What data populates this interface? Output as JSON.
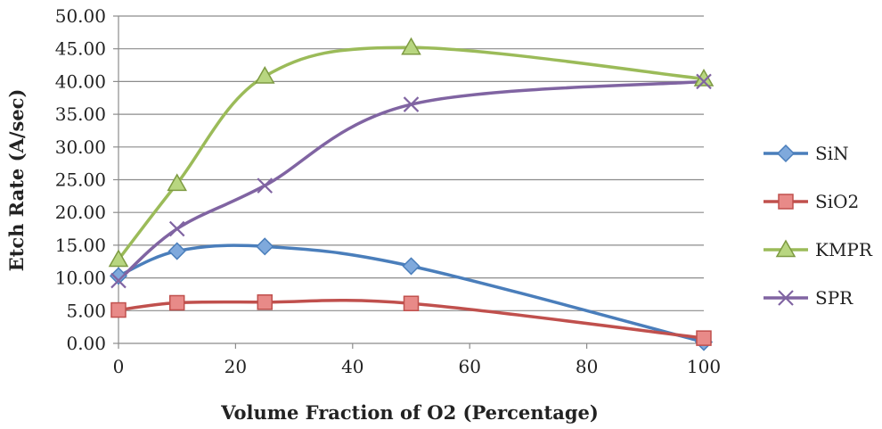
{
  "chart_data": {
    "type": "line",
    "title": "",
    "xlabel": "Volume Fraction of O2 (Percentage)",
    "ylabel": "Etch Rate (A/sec)",
    "xlim": [
      0,
      100
    ],
    "ylim": [
      0,
      50
    ],
    "xticks": [
      "0",
      "20",
      "40",
      "60",
      "80",
      "100"
    ],
    "yticks": [
      "0.00",
      "5.00",
      "10.00",
      "15.00",
      "20.00",
      "25.00",
      "30.00",
      "35.00",
      "40.00",
      "45.00",
      "50.00"
    ],
    "grid": true,
    "smooth": true,
    "legend_position": "right",
    "series": [
      {
        "name": "SiN",
        "marker": "diamond",
        "color": "#4a7ebb",
        "fill": "#7fa9dc",
        "x": [
          0,
          10,
          25,
          50,
          100
        ],
        "values": [
          10.3,
          14.1,
          14.8,
          11.8,
          0.2
        ]
      },
      {
        "name": "SiO2",
        "marker": "square",
        "color": "#c0504d",
        "fill": "#e88a88",
        "x": [
          0,
          10,
          25,
          50,
          100
        ],
        "values": [
          5.1,
          6.2,
          6.3,
          6.1,
          0.8
        ]
      },
      {
        "name": "KMPR",
        "marker": "triangle",
        "color": "#9bbb59",
        "fill": "#b8d680",
        "x": [
          0,
          10,
          25,
          50,
          100
        ],
        "values": [
          12.8,
          24.4,
          40.8,
          45.2,
          40.4
        ]
      },
      {
        "name": "SPR",
        "marker": "x",
        "color": "#8064a2",
        "fill": "#8064a2",
        "x": [
          0,
          10,
          25,
          50,
          100
        ],
        "values": [
          9.6,
          17.5,
          24.1,
          36.5,
          40.0
        ]
      }
    ]
  }
}
